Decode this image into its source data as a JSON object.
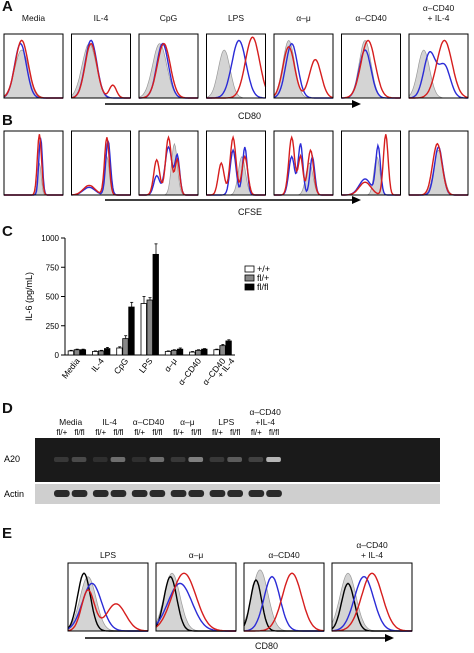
{
  "panels": {
    "A": {
      "label": "A",
      "conditions": [
        "Media",
        "IL-4",
        "CpG",
        "LPS",
        "α–μ",
        "α–CD40",
        "α–CD40\n+ IL-4"
      ],
      "axis_label": "CD80"
    },
    "B": {
      "label": "B",
      "axis_label": "CFSE"
    },
    "C": {
      "label": "C",
      "chart_data": {
        "type": "bar",
        "title": "",
        "xlabel": "",
        "ylabel": "IL-6 (pg/mL)",
        "ylim": [
          0,
          1000
        ],
        "yticks": [
          0,
          250,
          500,
          750,
          1000
        ],
        "categories": [
          "Media",
          "IL-4",
          "CpG",
          "LPS",
          "α–μ",
          "α–CD40",
          "α–CD40\n+ IL-4"
        ],
        "series": [
          {
            "name": "+/+",
            "color": "#ffffff",
            "values": [
              35,
              30,
              60,
              440,
              30,
              25,
              45
            ],
            "errors": [
              5,
              5,
              10,
              60,
              5,
              5,
              5
            ]
          },
          {
            "name": "fl/+",
            "color": "#888888",
            "values": [
              45,
              35,
              140,
              470,
              40,
              40,
              80
            ],
            "errors": [
              5,
              5,
              25,
              20,
              5,
              5,
              10
            ]
          },
          {
            "name": "fl/fl",
            "color": "#000000",
            "values": [
              45,
              55,
              410,
              860,
              50,
              50,
              120
            ],
            "errors": [
              5,
              10,
              40,
              90,
              10,
              5,
              10
            ]
          }
        ],
        "legend_position": "top-right",
        "grid": false
      }
    },
    "D": {
      "label": "D",
      "conditions": [
        "Media",
        "IL-4",
        "α–CD40",
        "α–μ",
        "LPS",
        "α–CD40\n+IL-4"
      ],
      "genotypes": [
        "fl/+",
        "fl/fl"
      ],
      "bands": [
        {
          "name": "A20",
          "intensities": [
            0.15,
            0.25,
            0.1,
            0.45,
            0.1,
            0.45,
            0.15,
            0.55,
            0.15,
            0.35,
            0.2,
            0.85
          ]
        },
        {
          "name": "Actin",
          "intensities": [
            0.7,
            0.7,
            0.7,
            0.7,
            0.7,
            0.7,
            0.7,
            0.7,
            0.7,
            0.7,
            0.7,
            0.7
          ]
        }
      ]
    },
    "E": {
      "label": "E",
      "conditions": [
        "LPS",
        "α–μ",
        "α–CD40",
        "α–CD40\n+ IL-4"
      ],
      "axis_label": "CD80"
    }
  },
  "colors": {
    "wt": "#2b2bd6",
    "ko": "#d61e1e",
    "ctrl": "#000000",
    "fill": "#d4d4d4"
  }
}
